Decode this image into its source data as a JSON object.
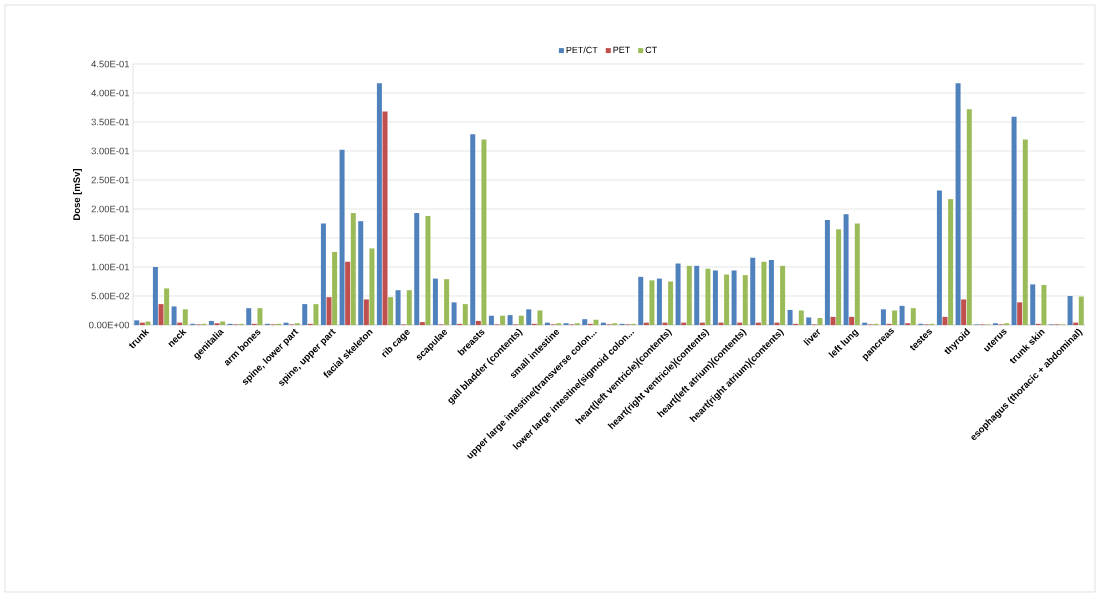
{
  "chart_data": {
    "type": "bar",
    "ylabel": "Dose [mSv]",
    "categories": [
      "trunk",
      null,
      "neck",
      null,
      "genitalia",
      null,
      "arm bones",
      null,
      "spine, lower part",
      null,
      "spine, upper part",
      null,
      "facial skeleton",
      null,
      "rib cage",
      null,
      "scapulae",
      null,
      "breasts",
      null,
      "gall bladder (contents)",
      null,
      "small intestine",
      null,
      "upper large intestine(transverse colon...",
      null,
      "lower large intestine(sigmoid colon...",
      null,
      "heart(left ventricle)(contents)",
      null,
      "heart(right ventricle)(contents)",
      null,
      "heart(left atrium)(contents)",
      null,
      "heart(right atrium)(contents)",
      null,
      "liver",
      null,
      "left lung",
      null,
      "pancreas",
      null,
      "testes",
      null,
      "thyroid",
      null,
      "uterus",
      null,
      "trunk skin",
      null,
      "esophagus (thoracic + abdominal)"
    ],
    "series": [
      {
        "name": "PET/CT",
        "color": "#4f81bd",
        "values": [
          0.008,
          0.1,
          0.032,
          0.002,
          0.007,
          0.002,
          0.029,
          0.002,
          0.004,
          0.036,
          0.175,
          0.302,
          0.179,
          0.417,
          0.06,
          0.193,
          0.08,
          0.039,
          0.329,
          0.016,
          0.017,
          0.027,
          0.004,
          0.003,
          0.01,
          0.004,
          0.002,
          0.083,
          0.08,
          0.106,
          0.102,
          0.094,
          0.094,
          0.116,
          0.112,
          0.026,
          0.013,
          0.181,
          0.191,
          0.004,
          0.027,
          0.033,
          0.002,
          0.232,
          0.417,
          0.001,
          0.003,
          0.359,
          0.07,
          0.001,
          0.05
        ]
      },
      {
        "name": "PET",
        "color": "#c0504d",
        "values": [
          0.004,
          0.036,
          0.004,
          0.001,
          0.003,
          0.001,
          0.002,
          0.001,
          0.001,
          0.002,
          0.048,
          0.109,
          0.044,
          0.368,
          0.001,
          0.005,
          0.001,
          0.002,
          0.007,
          0.001,
          0.001,
          0.002,
          0.001,
          0.001,
          0.002,
          0.001,
          0.001,
          0.004,
          0.004,
          0.004,
          0.004,
          0.004,
          0.004,
          0.004,
          0.004,
          0.002,
          0.001,
          0.014,
          0.014,
          0.001,
          0.002,
          0.003,
          0.001,
          0.014,
          0.044,
          0.001,
          0.001,
          0.039,
          0.002,
          0.001,
          0.004
        ]
      },
      {
        "name": "CT",
        "color": "#9bbb59",
        "values": [
          0.006,
          0.063,
          0.027,
          0.002,
          0.006,
          0.002,
          0.029,
          0.002,
          0.003,
          0.036,
          0.126,
          0.193,
          0.132,
          0.048,
          0.06,
          0.188,
          0.079,
          0.036,
          0.32,
          0.016,
          0.016,
          0.025,
          0.003,
          0.003,
          0.009,
          0.003,
          0.002,
          0.077,
          0.075,
          0.102,
          0.097,
          0.087,
          0.086,
          0.109,
          0.102,
          0.025,
          0.012,
          0.165,
          0.175,
          0.002,
          0.025,
          0.029,
          0.002,
          0.217,
          0.372,
          0.001,
          0.003,
          0.32,
          0.069,
          0.001,
          0.049
        ]
      }
    ],
    "ylim": [
      0,
      0.45
    ],
    "yticks": [
      {
        "value": 0,
        "label": "0.00E+00"
      },
      {
        "value": 0.05,
        "label": "5.00E-02"
      },
      {
        "value": 0.1,
        "label": "1.00E-01"
      },
      {
        "value": 0.15,
        "label": "1.50E-01"
      },
      {
        "value": 0.2,
        "label": "2.00E-01"
      },
      {
        "value": 0.25,
        "label": "2.50E-01"
      },
      {
        "value": 0.3,
        "label": "3.00E-01"
      },
      {
        "value": 0.35,
        "label": "3.50E-01"
      },
      {
        "value": 0.4,
        "label": "4.00E-01"
      },
      {
        "value": 0.45,
        "label": "4.50E-01"
      }
    ],
    "grid": "y",
    "legend": "top"
  }
}
